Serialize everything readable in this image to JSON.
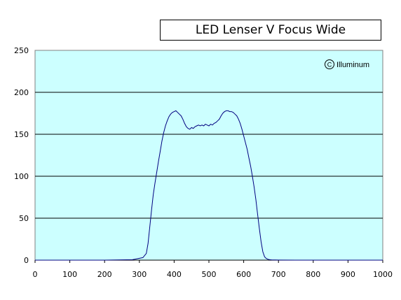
{
  "chart_data": {
    "type": "line",
    "title": "LED Lenser V Focus Wide",
    "watermark": "Illuminum",
    "xlabel": "",
    "ylabel": "",
    "xlim": [
      0,
      1000
    ],
    "ylim": [
      0,
      250
    ],
    "x_ticks": [
      0,
      100,
      200,
      300,
      400,
      500,
      600,
      700,
      800,
      900,
      1000
    ],
    "y_ticks": [
      0,
      50,
      100,
      150,
      200,
      250
    ],
    "grid": "horizontal",
    "legend": "none",
    "colors": {
      "plot_background": "#ccffff",
      "line": "#000080",
      "grid": "#000000"
    },
    "series": [
      {
        "x": [
          0,
          100,
          200,
          280,
          310,
          320,
          325,
          330,
          335,
          340,
          345,
          350,
          355,
          360,
          365,
          370,
          375,
          380,
          385,
          390,
          395,
          400,
          405,
          410,
          415,
          420,
          425,
          430,
          435,
          440,
          445,
          450,
          455,
          460,
          465,
          470,
          475,
          480,
          485,
          490,
          495,
          500,
          505,
          510,
          515,
          520,
          525,
          530,
          535,
          540,
          545,
          550,
          555,
          560,
          565,
          570,
          575,
          580,
          585,
          590,
          595,
          600,
          605,
          610,
          615,
          620,
          625,
          630,
          635,
          640,
          645,
          650,
          655,
          660,
          665,
          670,
          675,
          680,
          690,
          700,
          750,
          800,
          900,
          1000
        ],
        "y": [
          0,
          0,
          0,
          0.5,
          3,
          8,
          20,
          40,
          60,
          78,
          92,
          105,
          118,
          130,
          142,
          152,
          160,
          166,
          171,
          174,
          176,
          177,
          178,
          176,
          174,
          172,
          168,
          163,
          159,
          157,
          156,
          158,
          157,
          159,
          160,
          161,
          160,
          161,
          160,
          162,
          161,
          160,
          162,
          161,
          163,
          164,
          166,
          168,
          172,
          175,
          177,
          178,
          178,
          177,
          177,
          176,
          174,
          172,
          168,
          163,
          156,
          148,
          140,
          132,
          122,
          112,
          100,
          87,
          72,
          55,
          38,
          22,
          10,
          4,
          2,
          1,
          0.5,
          0.3,
          0.2,
          0.1,
          0,
          0,
          0,
          0
        ]
      }
    ]
  }
}
